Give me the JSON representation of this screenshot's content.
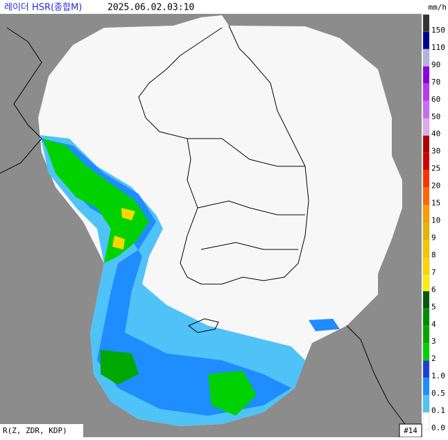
{
  "header": {
    "title": "레이더 HSR(종합M)",
    "time": "2025.06.02.03:10",
    "unit": "mm/h"
  },
  "legend": [
    {
      "label": "150",
      "color": "#333333"
    },
    {
      "label": "110",
      "color": "#000390"
    },
    {
      "label": "90",
      "color": "#b3b4de"
    },
    {
      "label": "70",
      "color": "#8a00e0"
    },
    {
      "label": "60",
      "color": "#b33cf0"
    },
    {
      "label": "50",
      "color": "#c96df0"
    },
    {
      "label": "40",
      "color": "#dfa9ee"
    },
    {
      "label": "30",
      "color": "#b00000"
    },
    {
      "label": "25",
      "color": "#d20000"
    },
    {
      "label": "20",
      "color": "#ff3300"
    },
    {
      "label": "15",
      "color": "#ff6600"
    },
    {
      "label": "10",
      "color": "#ff9900"
    },
    {
      "label": "9",
      "color": "#e6b400"
    },
    {
      "label": "8",
      "color": "#f0c800"
    },
    {
      "label": "7",
      "color": "#ffd500"
    },
    {
      "label": "6",
      "color": "#ffee00"
    },
    {
      "label": "5",
      "color": "#005a00"
    },
    {
      "label": "4",
      "color": "#008c00"
    },
    {
      "label": "3",
      "color": "#00a800"
    },
    {
      "label": "2",
      "color": "#00d200"
    },
    {
      "label": "1.0",
      "color": "#1d3fd6"
    },
    {
      "label": "0.5",
      "color": "#1f8cff"
    },
    {
      "label": "0.1",
      "color": "#4fc3f7"
    },
    {
      "label": "0.0",
      "color": "#ffffff"
    }
  ],
  "footer": {
    "method": "R(Z, ZDR, KDP)",
    "site_count": "#14"
  }
}
